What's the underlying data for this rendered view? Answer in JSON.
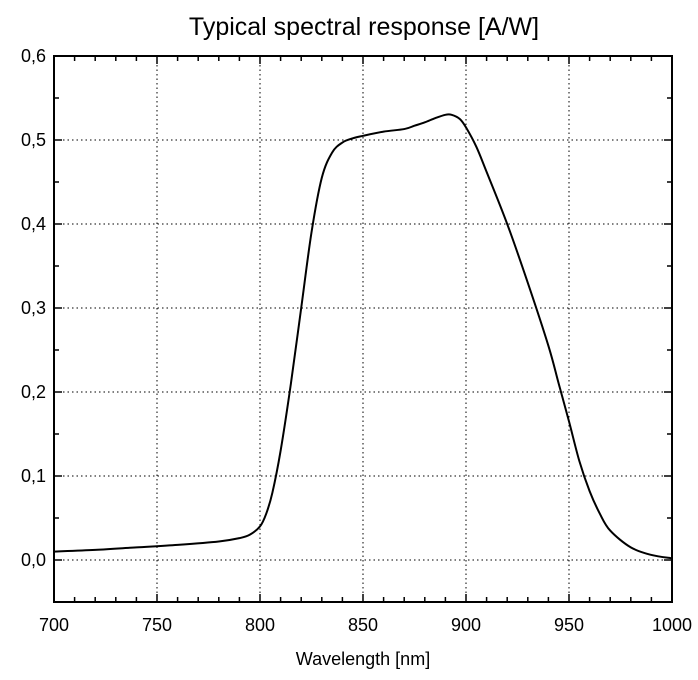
{
  "chart_data": {
    "type": "line",
    "title": "Typical spectral response [A/W]",
    "xlabel": "Wavelength [nm]",
    "ylabel": "",
    "xlim": [
      700,
      1000
    ],
    "ylim": [
      -0.05,
      0.6
    ],
    "x_ticks": [
      700,
      750,
      800,
      850,
      900,
      950,
      1000
    ],
    "x_tick_labels": [
      "700",
      "750",
      "800",
      "850",
      "900",
      "950",
      "1000"
    ],
    "y_ticks": [
      0.0,
      0.1,
      0.2,
      0.3,
      0.4,
      0.5,
      0.6
    ],
    "y_tick_labels": [
      "0,0",
      "0,1",
      "0,2",
      "0,3",
      "0,4",
      "0,5",
      "0,6"
    ],
    "grid": true,
    "line_color": "#000000",
    "series": [
      {
        "x": [
          700,
          720,
          740,
          760,
          780,
          790,
          795,
          800,
          803,
          806,
          810,
          815,
          820,
          825,
          830,
          835,
          840,
          845,
          850,
          860,
          870,
          875,
          880,
          885,
          890,
          893,
          897,
          900,
          905,
          910,
          920,
          930,
          940,
          945,
          950,
          955,
          960,
          965,
          970,
          980,
          990,
          1000
        ],
        "y": [
          0.01,
          0.012,
          0.015,
          0.018,
          0.022,
          0.026,
          0.03,
          0.04,
          0.055,
          0.08,
          0.13,
          0.21,
          0.3,
          0.39,
          0.455,
          0.485,
          0.497,
          0.502,
          0.505,
          0.51,
          0.513,
          0.517,
          0.521,
          0.526,
          0.53,
          0.53,
          0.525,
          0.515,
          0.492,
          0.462,
          0.4,
          0.33,
          0.255,
          0.21,
          0.165,
          0.118,
          0.082,
          0.055,
          0.035,
          0.015,
          0.006,
          0.002
        ]
      }
    ]
  }
}
